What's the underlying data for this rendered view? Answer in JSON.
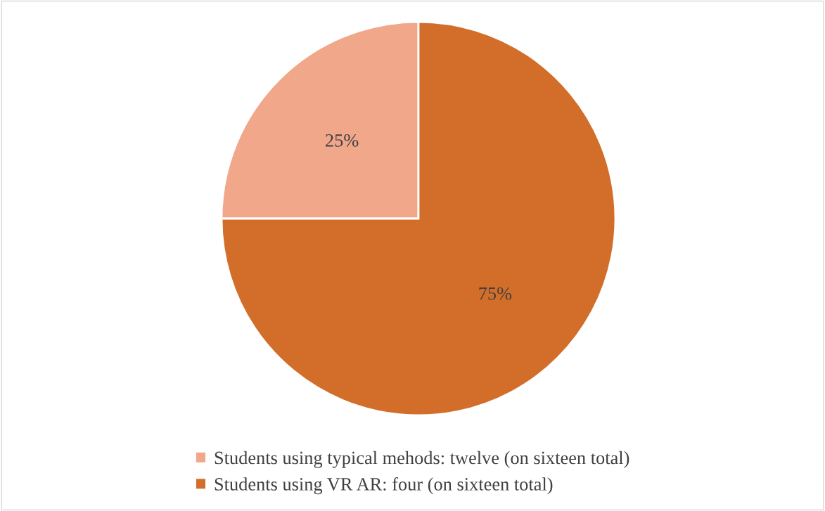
{
  "chart_data": {
    "type": "pie",
    "categories": [
      "Students using typical mehods: twelve (on sixteen total)",
      "Students using VR AR: four (on sixteen total)"
    ],
    "values": [
      25,
      75
    ],
    "colors": [
      "#f0a78a",
      "#d26e2a"
    ],
    "value_labels": [
      "25%",
      "75%"
    ],
    "legend": "bottom"
  }
}
